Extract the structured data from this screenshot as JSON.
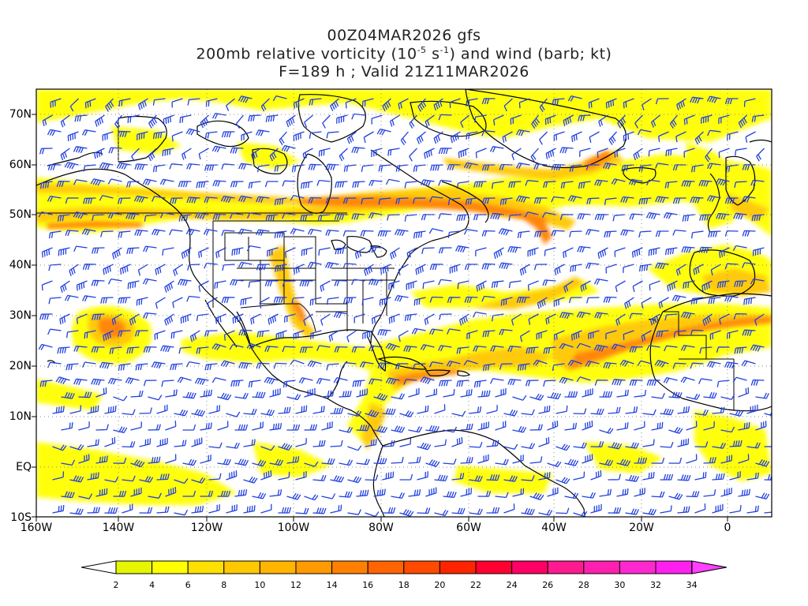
{
  "title": {
    "line1": "00Z04MAR2026 gfs",
    "line2_pre": "200mb relative vorticity (10",
    "line2_exp1": "-5",
    "line2_mid": " s",
    "line2_exp2": "-1",
    "line2_post": ") and wind (barb; kt)",
    "line3": "F=189 h ; Valid 21Z11MAR2026"
  },
  "axes": {
    "lat_labels": [
      "70N",
      "60N",
      "50N",
      "40N",
      "30N",
      "20N",
      "10N",
      "EQ",
      "10S"
    ],
    "lon_labels": [
      "160W",
      "140W",
      "120W",
      "100W",
      "80W",
      "60W",
      "40W",
      "20W",
      "0"
    ]
  },
  "colorbar": {
    "labels": [
      "2",
      "4",
      "6",
      "8",
      "10",
      "12",
      "14",
      "16",
      "18",
      "20",
      "22",
      "24",
      "26",
      "28",
      "30",
      "32",
      "34"
    ],
    "colors": [
      "#e6f500",
      "#ffff00",
      "#ffe000",
      "#ffc800",
      "#ffb400",
      "#ff9a00",
      "#ff8000",
      "#ff6400",
      "#ff4a00",
      "#ff2400",
      "#ff0030",
      "#ff0064",
      "#ff1a90",
      "#ff20b0",
      "#ff28d0",
      "#ff20f0"
    ],
    "arrow_right_color": "#ff40ff"
  },
  "style": {
    "barb_color": "#2040e0",
    "coast_color": "#000000",
    "vort_weak": "#ffff00",
    "vort_mid": "#ffc800",
    "vort_strong": "#ff8000",
    "vort_max": "#ff4a00"
  }
}
